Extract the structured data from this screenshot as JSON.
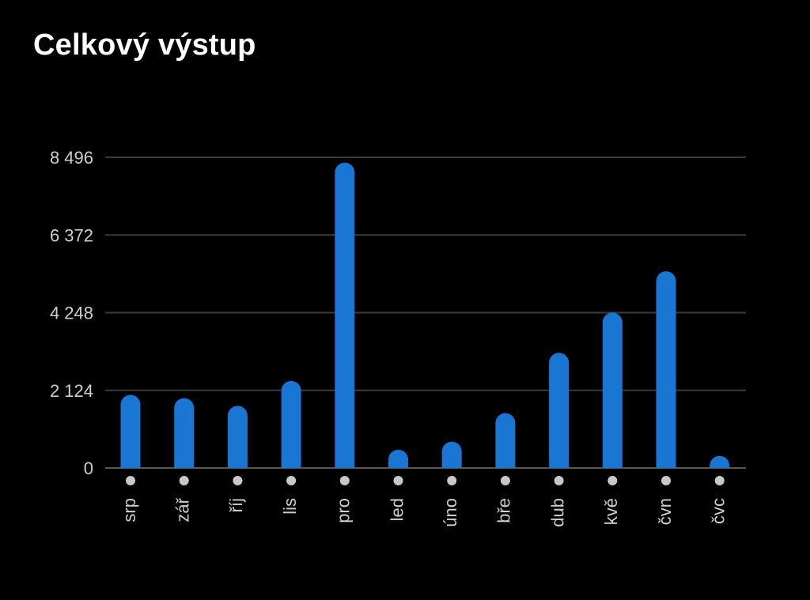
{
  "title": "Celkový výstup",
  "colors": {
    "background": "#000000",
    "bar": "#1976d2",
    "grid": "#3a3a3a",
    "text": "#cfcfcf",
    "dot": "#c8c8c8"
  },
  "chart_data": {
    "type": "bar",
    "title": "Celkový výstup",
    "xlabel": "",
    "ylabel": "",
    "categories": [
      "srp",
      "zář",
      "říj",
      "lis",
      "pro",
      "led",
      "úno",
      "bře",
      "dub",
      "kvě",
      "čvn",
      "čvc"
    ],
    "values": [
      2000,
      1910,
      1700,
      2380,
      8350,
      500,
      720,
      1500,
      3150,
      4250,
      5380,
      330
    ],
    "yticks": [
      "0",
      "2 124",
      "4 248",
      "6 372",
      "8 496"
    ],
    "ytick_values": [
      0,
      2124,
      4248,
      6372,
      8496
    ],
    "ylim": [
      0,
      8496
    ],
    "grid": true,
    "legend": "none"
  }
}
